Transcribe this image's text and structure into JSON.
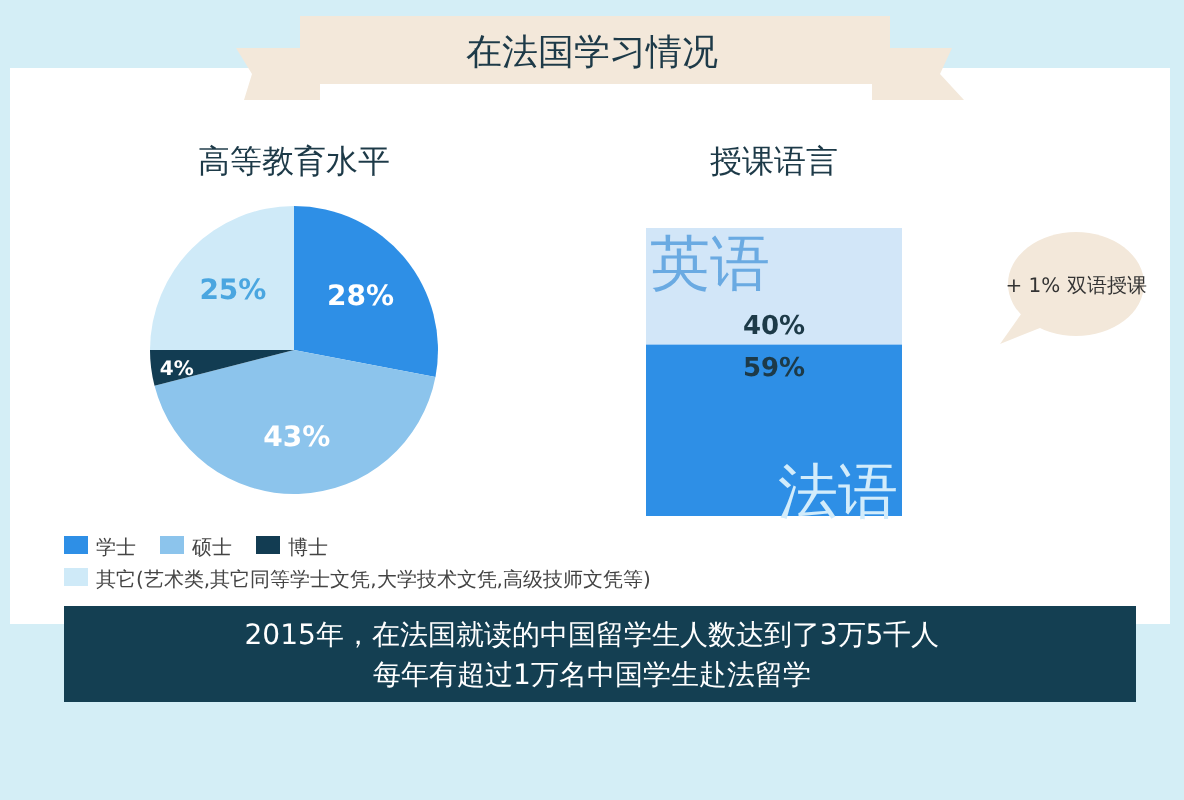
{
  "chart_data": [
    {
      "type": "other",
      "title": "在法国学习情况",
      "annotations": [
        "2015年，在法国就读的中国留学生人数达到了3万5千人",
        "每年有超过1万名中国学生赴法留学"
      ]
    },
    {
      "type": "pie",
      "title": "高等教育水平",
      "categories": [
        "学士",
        "硕士",
        "博士",
        "其它(艺术类,其它同等学士文凭,大学技术文凭,高级技师文凭等)"
      ],
      "values": [
        28,
        43,
        4,
        25
      ],
      "value_labels": [
        "28%",
        "43%",
        "4%",
        "25%"
      ],
      "colors": [
        "#2e8fe6",
        "#8cc4ec",
        "#123c52",
        "#cfeaf8"
      ],
      "legend": "bottom"
    },
    {
      "type": "bar",
      "title": "授课语言",
      "stacked": true,
      "categories": [
        null
      ],
      "series": [
        {
          "name": "法语",
          "color": "#2e8fe6",
          "values": [
            59
          ],
          "value_labels": [
            "59%"
          ]
        },
        {
          "name": "英语",
          "color": "#d2e6f8",
          "values": [
            40
          ],
          "value_labels": [
            "40%"
          ]
        }
      ],
      "annotations": [
        "+ 1% 双语授课"
      ]
    }
  ]
}
